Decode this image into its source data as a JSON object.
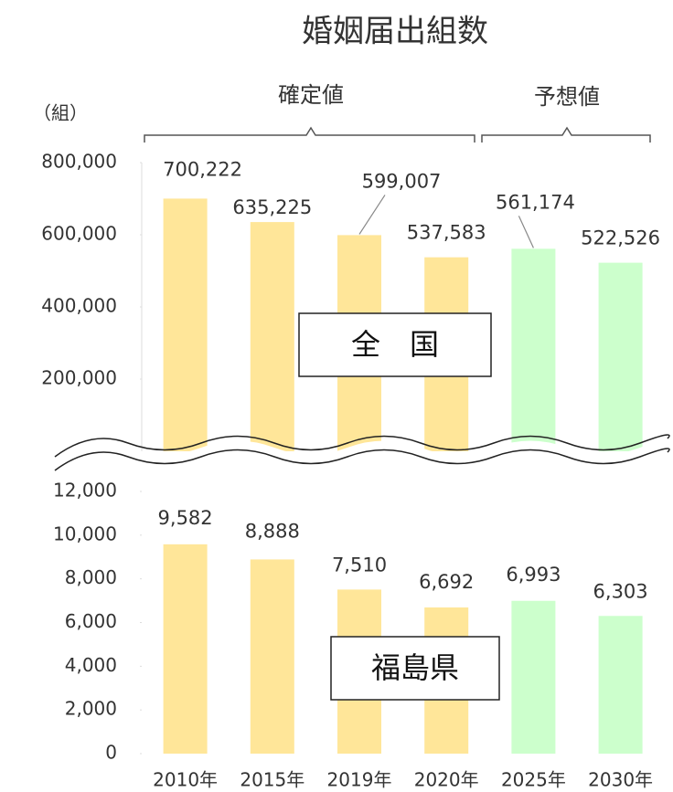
{
  "chart_data": [
    {
      "type": "bar",
      "title": "婚姻届出組数",
      "y_label": "（組）",
      "label": "全　国",
      "annotations": [
        "確定値",
        "予想値"
      ],
      "values": [
        700222,
        635225,
        599007,
        537583,
        561174,
        522526
      ],
      "value_labels": [
        "700,222",
        "635,225",
        "599,007",
        "537,583",
        "561,174",
        "522,526"
      ],
      "colors": [
        "#ffe699",
        "#ffe699",
        "#ffe699",
        "#ffe699",
        "#ccffcc",
        "#ccffcc"
      ],
      "ylim": [
        0,
        800000
      ],
      "yticks": [
        {
          "value": 200000,
          "label": "200,000"
        },
        {
          "value": 400000,
          "label": "400,000"
        },
        {
          "value": 600000,
          "label": "600,000"
        },
        {
          "value": 800000,
          "label": "800,000"
        }
      ]
    },
    {
      "type": "bar",
      "label": "福島県",
      "categories": [
        "2010年",
        "2015年",
        "2019年",
        "2020年",
        "2025年",
        "2030年"
      ],
      "values": [
        9582,
        8888,
        7510,
        6692,
        6993,
        6303
      ],
      "value_labels": [
        "9,582",
        "8,888",
        "7,510",
        "6,692",
        "6,993",
        "6,303"
      ],
      "colors": [
        "#ffe699",
        "#ffe699",
        "#ffe699",
        "#ffe699",
        "#ccffcc",
        "#ccffcc"
      ],
      "ylim": [
        0,
        12000
      ],
      "yticks": [
        0,
        {
          "value": 2000,
          "label": "2,000"
        },
        {
          "value": 4000,
          "label": "4,000"
        },
        {
          "value": 6000,
          "label": "6,000"
        },
        {
          "value": 8000,
          "label": "8,000"
        },
        {
          "value": 10000,
          "label": "10,000"
        },
        {
          "value": 12000,
          "label": "12,000"
        }
      ]
    }
  ]
}
